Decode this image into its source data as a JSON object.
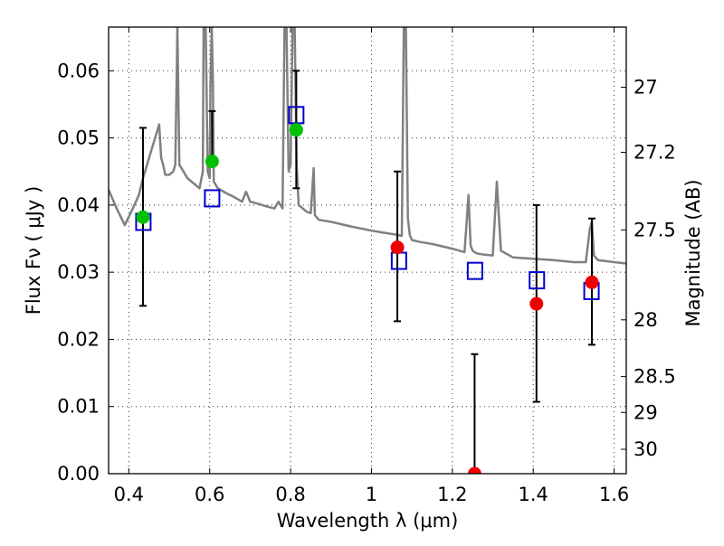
{
  "chart_data": {
    "type": "scatter",
    "title": "",
    "xlabel": "Wavelength  λ (μm)",
    "ylabel": "Flux  Fν  ( μJy )",
    "ylabel_right": "Magnitude (AB)",
    "xlim": [
      0.35,
      1.63
    ],
    "ylim": [
      0.0,
      0.0665
    ],
    "grid": true,
    "x_ticks": [
      {
        "value": 0.4,
        "label": "0.4"
      },
      {
        "value": 0.6,
        "label": "0.6"
      },
      {
        "value": 0.8,
        "label": "0.8"
      },
      {
        "value": 1.0,
        "label": "1"
      },
      {
        "value": 1.2,
        "label": "1.2"
      },
      {
        "value": 1.4,
        "label": "1.4"
      },
      {
        "value": 1.6,
        "label": "1.6"
      }
    ],
    "y_ticks": [
      {
        "value": 0.0,
        "label": "0.00"
      },
      {
        "value": 0.01,
        "label": "0.01"
      },
      {
        "value": 0.02,
        "label": "0.02"
      },
      {
        "value": 0.03,
        "label": "0.03"
      },
      {
        "value": 0.04,
        "label": "0.04"
      },
      {
        "value": 0.05,
        "label": "0.05"
      },
      {
        "value": 0.06,
        "label": "0.06"
      }
    ],
    "right_ticks": [
      {
        "mag": 27.0,
        "label": "27"
      },
      {
        "mag": 27.2,
        "label": "27.2"
      },
      {
        "mag": 27.5,
        "label": "27.5"
      },
      {
        "mag": 28.0,
        "label": "28"
      },
      {
        "mag": 28.5,
        "label": "28.5"
      },
      {
        "mag": 29.0,
        "label": "29"
      },
      {
        "mag": 30.0,
        "label": "30"
      }
    ],
    "series": [
      {
        "name": "model-spectrum",
        "kind": "line",
        "color": "#808080",
        "x": [
          0.35,
          0.37,
          0.39,
          0.41,
          0.425,
          0.435,
          0.445,
          0.455,
          0.465,
          0.475,
          0.48,
          0.485,
          0.49,
          0.5,
          0.51,
          0.515,
          0.518,
          0.52,
          0.522,
          0.525,
          0.535,
          0.545,
          0.555,
          0.565,
          0.575,
          0.583,
          0.585,
          0.59,
          0.595,
          0.6,
          0.602,
          0.605,
          0.608,
          0.61,
          0.62,
          0.64,
          0.66,
          0.68,
          0.69,
          0.7,
          0.72,
          0.74,
          0.76,
          0.77,
          0.78,
          0.785,
          0.79,
          0.795,
          0.8,
          0.805,
          0.81,
          0.815,
          0.82,
          0.83,
          0.84,
          0.85,
          0.857,
          0.86,
          0.87,
          0.9,
          0.95,
          1.0,
          1.04,
          1.06,
          1.075,
          1.08,
          1.085,
          1.09,
          1.095,
          1.1,
          1.12,
          1.15,
          1.2,
          1.23,
          1.24,
          1.245,
          1.25,
          1.26,
          1.28,
          1.3,
          1.31,
          1.32,
          1.35,
          1.4,
          1.45,
          1.5,
          1.53,
          1.54,
          1.545,
          1.55,
          1.56,
          1.6,
          1.63
        ],
        "y": [
          0.0423,
          0.0395,
          0.037,
          0.0395,
          0.0415,
          0.044,
          0.046,
          0.048,
          0.05,
          0.052,
          0.047,
          0.046,
          0.0445,
          0.0445,
          0.045,
          0.046,
          0.058,
          0.0665,
          0.058,
          0.046,
          0.045,
          0.044,
          0.0435,
          0.043,
          0.0425,
          0.045,
          0.0665,
          0.0665,
          0.045,
          0.044,
          0.058,
          0.0665,
          0.058,
          0.0435,
          0.0425,
          0.0418,
          0.0412,
          0.0405,
          0.042,
          0.0405,
          0.0402,
          0.0398,
          0.0395,
          0.0405,
          0.0395,
          0.0665,
          0.0665,
          0.045,
          0.046,
          0.0665,
          0.0665,
          0.046,
          0.04,
          0.0395,
          0.039,
          0.0388,
          0.0455,
          0.0385,
          0.0378,
          0.0375,
          0.0368,
          0.0362,
          0.0358,
          0.0356,
          0.0354,
          0.0665,
          0.0665,
          0.038,
          0.0355,
          0.0348,
          0.0345,
          0.0342,
          0.0335,
          0.033,
          0.0415,
          0.034,
          0.0332,
          0.0328,
          0.0326,
          0.0325,
          0.0435,
          0.0332,
          0.0322,
          0.032,
          0.0318,
          0.0315,
          0.0315,
          0.0365,
          0.0375,
          0.0325,
          0.0318,
          0.0315,
          0.0313
        ]
      },
      {
        "name": "observed-green",
        "kind": "points",
        "color": "#00c000",
        "points": [
          {
            "x": 0.435,
            "y": 0.0382
          },
          {
            "x": 0.606,
            "y": 0.0465
          },
          {
            "x": 0.814,
            "y": 0.0512
          }
        ]
      },
      {
        "name": "observed-red",
        "kind": "points",
        "color": "#ee0000",
        "points": [
          {
            "x": 1.064,
            "y": 0.0337
          },
          {
            "x": 1.255,
            "y": 0.0
          },
          {
            "x": 1.408,
            "y": 0.0253
          },
          {
            "x": 1.545,
            "y": 0.0285
          }
        ]
      },
      {
        "name": "model-flux",
        "kind": "squares",
        "color": "#0000cc",
        "points": [
          {
            "x": 0.436,
            "y": 0.0375
          },
          {
            "x": 0.606,
            "y": 0.041
          },
          {
            "x": 0.814,
            "y": 0.0534
          },
          {
            "x": 1.068,
            "y": 0.0317
          },
          {
            "x": 1.256,
            "y": 0.0302
          },
          {
            "x": 1.409,
            "y": 0.0288
          },
          {
            "x": 1.544,
            "y": 0.0272
          }
        ]
      },
      {
        "name": "error-bars",
        "kind": "errorbars",
        "color": "#000000",
        "bars": [
          {
            "x": 0.435,
            "low": 0.025,
            "high": 0.0515
          },
          {
            "x": 0.606,
            "low": 0.0465,
            "high": 0.054
          },
          {
            "x": 0.814,
            "low": 0.0425,
            "high": 0.06
          },
          {
            "x": 1.064,
            "low": 0.0227,
            "high": 0.045
          },
          {
            "x": 1.255,
            "low": 0.0,
            "high": 0.0178
          },
          {
            "x": 1.408,
            "low": 0.0107,
            "high": 0.04
          },
          {
            "x": 1.545,
            "low": 0.0192,
            "high": 0.038
          }
        ]
      }
    ]
  }
}
